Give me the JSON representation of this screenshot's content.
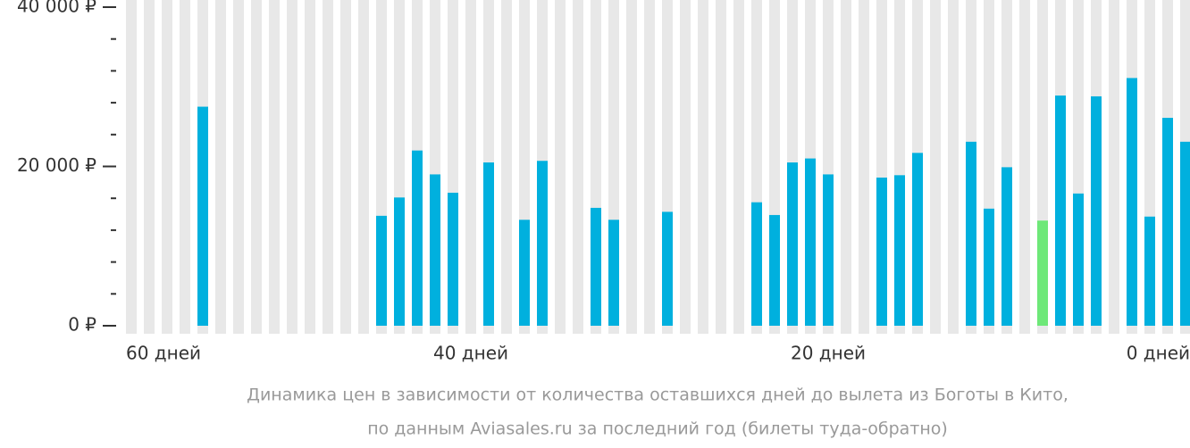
{
  "chart_data": {
    "type": "bar",
    "categories": [
      "60 дней",
      null,
      null,
      null,
      null,
      null,
      null,
      null,
      null,
      null,
      null,
      null,
      null,
      null,
      null,
      null,
      null,
      null,
      null,
      "40 дней",
      null,
      null,
      null,
      null,
      null,
      null,
      null,
      null,
      null,
      null,
      null,
      null,
      null,
      null,
      null,
      null,
      null,
      null,
      null,
      "20 дней",
      null,
      null,
      null,
      null,
      null,
      null,
      null,
      null,
      null,
      null,
      null,
      null,
      null,
      null,
      null,
      null,
      null,
      null,
      null,
      "0 дней"
    ],
    "values": [
      null,
      null,
      null,
      null,
      27500,
      null,
      null,
      null,
      null,
      null,
      null,
      null,
      null,
      null,
      13800,
      16100,
      22000,
      19000,
      16700,
      null,
      20500,
      null,
      13300,
      20700,
      null,
      null,
      14800,
      13300,
      null,
      null,
      14300,
      null,
      null,
      null,
      null,
      15500,
      13900,
      20500,
      21000,
      19000,
      null,
      null,
      18600,
      18900,
      21700,
      null,
      null,
      23100,
      14700,
      19900,
      null,
      13200,
      28900,
      16600,
      28800,
      null,
      31100,
      13700,
      26100,
      23100
    ],
    "color": "#00b0de",
    "colors": {
      "51": "#6ee878"
    },
    "background_color": "#e8e8e8",
    "ylim": [
      0,
      40000
    ],
    "yticks": [
      {
        "value": 0,
        "label": "0 ₽"
      },
      {
        "value": 20000,
        "label": "20 000 ₽"
      },
      {
        "value": 40000,
        "label": "40 000 ₽"
      }
    ],
    "minor_yticks": [
      4000,
      8000,
      12000,
      16000,
      24000,
      28000,
      32000,
      36000
    ],
    "caption": [
      "Динамика цен в зависимости от количества оставшихся дней до вылета из Боготы в Кито,",
      "по данным Aviasales.ru за последний год (билеты туда-обратно)"
    ]
  }
}
